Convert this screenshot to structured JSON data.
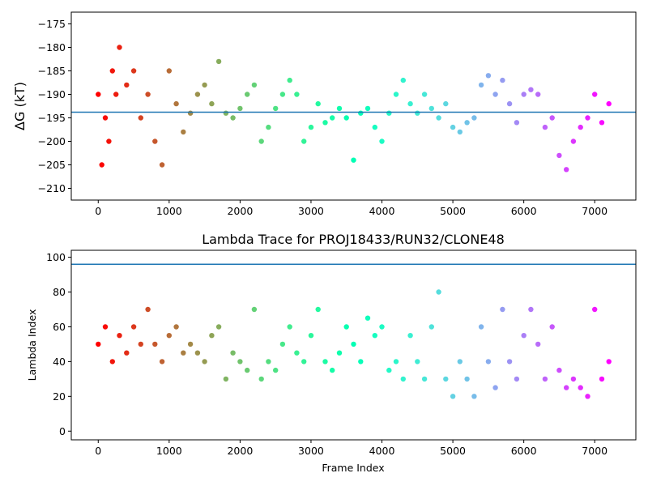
{
  "chart_data": [
    {
      "type": "scatter",
      "title": "",
      "xlabel": "",
      "ylabel": "ΔG (kT)",
      "xlim": [
        -380,
        7580
      ],
      "ylim": [
        -212.5,
        -172.5
      ],
      "xticks": [
        0,
        1000,
        2000,
        3000,
        4000,
        5000,
        6000,
        7000
      ],
      "yticks": [
        -210,
        -205,
        -200,
        -195,
        -190,
        -185,
        -180,
        -175
      ],
      "xtick_labels": [
        "0",
        "1000",
        "2000",
        "3000",
        "4000",
        "5000",
        "6000",
        "7000"
      ],
      "ytick_labels": [
        "−210",
        "−205",
        "−200",
        "−195",
        "−190",
        "−185",
        "−180",
        "−175"
      ],
      "grid": false,
      "colormap": "rainbow (red at frame 0 → violet at last frame)",
      "hline": {
        "y": -193.8,
        "color": "#1f77b4"
      },
      "series": [
        {
          "x": [
            0,
            50,
            100,
            150,
            200,
            250,
            300,
            400,
            500,
            600,
            700,
            800,
            900,
            1000,
            1100,
            1200,
            1300,
            1400,
            1500,
            1600,
            1700,
            1800,
            1900,
            2000,
            2100,
            2200,
            2300,
            2400,
            2500,
            2600,
            2700,
            2800,
            2900,
            3000,
            3100,
            3200,
            3300,
            3400,
            3500,
            3600,
            3700,
            3800,
            3900,
            4000,
            4100,
            4200,
            4300,
            4400,
            4500,
            4600,
            4700,
            4800,
            4900,
            5000,
            5100,
            5200,
            5300,
            5400,
            5500,
            5600,
            5700,
            5800,
            5900,
            6000,
            6100,
            6200,
            6300,
            6400,
            6500,
            6600,
            6700,
            6800,
            6900,
            7000,
            7100,
            7200
          ],
          "y": [
            -190,
            -205,
            -195,
            -200,
            -185,
            -190,
            -180,
            -188,
            -185,
            -195,
            -190,
            -200,
            -205,
            -185,
            -192,
            -198,
            -194,
            -190,
            -188,
            -192,
            -183,
            -194,
            -195,
            -193,
            -190,
            -188,
            -200,
            -197,
            -193,
            -190,
            -187,
            -190,
            -200,
            -197,
            -192,
            -196,
            -195,
            -193,
            -195,
            -204,
            -194,
            -193,
            -197,
            -200,
            -194,
            -190,
            -187,
            -192,
            -194,
            -190,
            -193,
            -195,
            -192,
            -197,
            -198,
            -196,
            -195,
            -188,
            -186,
            -190,
            -187,
            -192,
            -196,
            -190,
            -189,
            -190,
            -197,
            -195,
            -203,
            -206,
            -200,
            -197,
            -195,
            -190,
            -196,
            -192
          ]
        }
      ]
    },
    {
      "type": "scatter",
      "title": "Lambda Trace for PROJ18433/RUN32/CLONE48",
      "xlabel": "Frame Index",
      "ylabel": "Lambda Index",
      "xlim": [
        -380,
        7580
      ],
      "ylim": [
        -5,
        104
      ],
      "xticks": [
        0,
        1000,
        2000,
        3000,
        4000,
        5000,
        6000,
        7000
      ],
      "yticks": [
        0,
        20,
        40,
        60,
        80,
        100
      ],
      "xtick_labels": [
        "0",
        "1000",
        "2000",
        "3000",
        "4000",
        "5000",
        "6000",
        "7000"
      ],
      "ytick_labels": [
        "0",
        "20",
        "40",
        "60",
        "80",
        "100"
      ],
      "grid": false,
      "colormap": "rainbow (red at frame 0 → violet at last frame)",
      "hline": {
        "y": 96,
        "color": "#1f77b4"
      },
      "series": [
        {
          "x": [
            0,
            100,
            200,
            300,
            400,
            500,
            600,
            700,
            800,
            900,
            1000,
            1100,
            1200,
            1300,
            1400,
            1500,
            1600,
            1700,
            1800,
            1900,
            2000,
            2100,
            2200,
            2300,
            2400,
            2500,
            2600,
            2700,
            2800,
            2900,
            3000,
            3100,
            3200,
            3300,
            3400,
            3500,
            3600,
            3700,
            3800,
            3900,
            4000,
            4100,
            4200,
            4300,
            4400,
            4500,
            4600,
            4700,
            4800,
            4900,
            5000,
            5100,
            5200,
            5300,
            5400,
            5500,
            5600,
            5700,
            5800,
            5900,
            6000,
            6100,
            6200,
            6300,
            6400,
            6500,
            6600,
            6700,
            6800,
            6900,
            7000,
            7100,
            7200
          ],
          "y": [
            50,
            60,
            40,
            55,
            45,
            60,
            50,
            70,
            50,
            40,
            55,
            60,
            45,
            50,
            45,
            40,
            55,
            60,
            30,
            45,
            40,
            35,
            70,
            30,
            40,
            35,
            50,
            60,
            45,
            40,
            55,
            70,
            40,
            35,
            45,
            60,
            50,
            40,
            65,
            55,
            60,
            35,
            40,
            30,
            55,
            40,
            30,
            60,
            80,
            30,
            20,
            40,
            30,
            20,
            60,
            40,
            25,
            70,
            40,
            30,
            55,
            70,
            50,
            30,
            60,
            35,
            25,
            30,
            25,
            20,
            70,
            30,
            40
          ]
        }
      ]
    }
  ]
}
